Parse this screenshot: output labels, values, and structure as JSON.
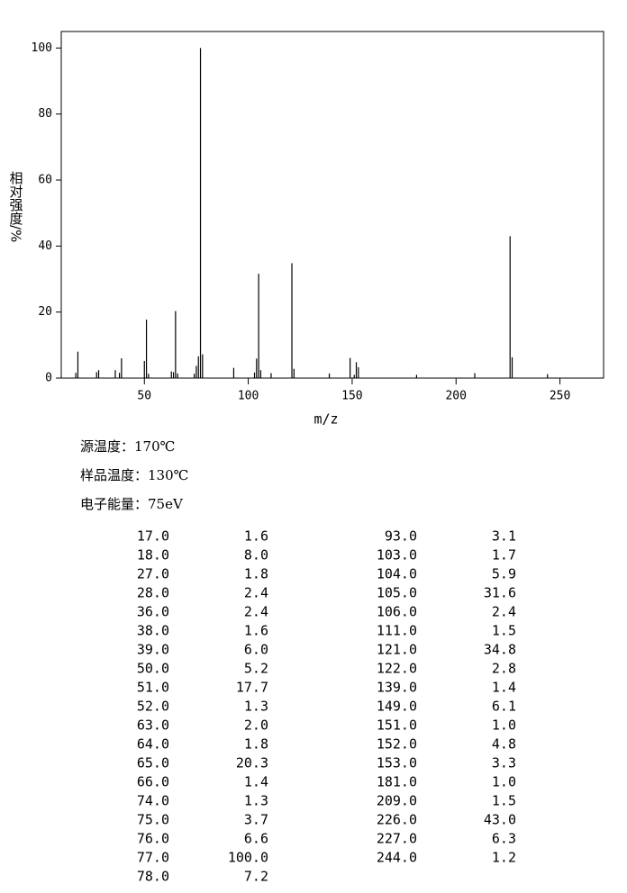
{
  "chart_data": {
    "type": "bar",
    "xlabel": "m/z",
    "ylabel": "相对强度/%",
    "x": [
      17,
      18,
      27,
      28,
      36,
      38,
      39,
      50,
      51,
      52,
      63,
      64,
      65,
      66,
      74,
      75,
      76,
      77,
      78,
      93,
      103,
      104,
      105,
      106,
      111,
      121,
      122,
      139,
      149,
      151,
      152,
      153,
      181,
      209,
      226,
      227,
      244
    ],
    "x_labels": [
      "17.0",
      "18.0",
      "27.0",
      "28.0",
      "36.0",
      "38.0",
      "39.0",
      "50.0",
      "51.0",
      "52.0",
      "63.0",
      "64.0",
      "65.0",
      "66.0",
      "74.0",
      "75.0",
      "76.0",
      "77.0",
      "78.0",
      "93.0",
      "103.0",
      "104.0",
      "105.0",
      "106.0",
      "111.0",
      "121.0",
      "122.0",
      "139.0",
      "149.0",
      "151.0",
      "152.0",
      "153.0",
      "181.0",
      "209.0",
      "226.0",
      "227.0",
      "244.0"
    ],
    "values": [
      1.6,
      8,
      1.8,
      2.4,
      2.4,
      1.6,
      6,
      5.2,
      17.7,
      1.3,
      2,
      1.8,
      20.3,
      1.4,
      1.3,
      3.7,
      6.6,
      100,
      7.2,
      3.1,
      1.7,
      5.9,
      31.6,
      2.4,
      1.5,
      34.8,
      2.8,
      1.4,
      6.1,
      1,
      4.8,
      3.3,
      1,
      1.5,
      43,
      6.3,
      1.2
    ],
    "value_labels": [
      "1.6",
      "8.0",
      "1.8",
      "2.4",
      "2.4",
      "1.6",
      "6.0",
      "5.2",
      "17.7",
      "1.3",
      "2.0",
      "1.8",
      "20.3",
      "1.4",
      "1.3",
      "3.7",
      "6.6",
      "100.0",
      "7.2",
      "3.1",
      "1.7",
      "5.9",
      "31.6",
      "2.4",
      "1.5",
      "34.8",
      "2.8",
      "1.4",
      "6.1",
      "1.0",
      "4.8",
      "3.3",
      "1.0",
      "1.5",
      "43.0",
      "6.3",
      "1.2"
    ],
    "color": "#000000",
    "xlim": [
      10,
      271
    ],
    "ylim": [
      0,
      105
    ],
    "xticks": [
      50,
      100,
      150,
      200,
      250
    ],
    "yticks": [
      0,
      20,
      40,
      60,
      80,
      100
    ]
  },
  "info": [
    "源温度：170℃",
    "样品温度：130℃",
    "电子能量：75eV"
  ]
}
